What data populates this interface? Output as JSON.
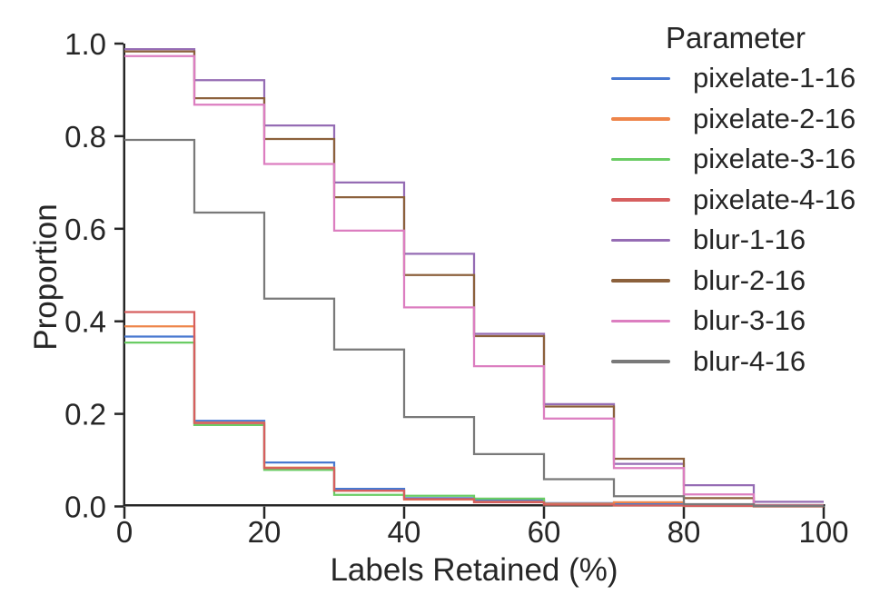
{
  "chart_data": {
    "type": "step-histogram",
    "stat": "proportion",
    "title": "",
    "xlabel": "Labels Retained (%)",
    "ylabel": "Proportion",
    "legend_title": "Parameter",
    "legend_position": "upper right",
    "grid": false,
    "xlim": [
      0,
      100
    ],
    "ylim": [
      0.0,
      1.0
    ],
    "x_tick_values": [
      0,
      20,
      40,
      60,
      80,
      100
    ],
    "x_tick_labels": [
      "0",
      "20",
      "40",
      "60",
      "80",
      "100"
    ],
    "y_tick_values": [
      0.0,
      0.2,
      0.4,
      0.6,
      0.8,
      1.0
    ],
    "y_tick_labels": [
      "0.0",
      "0.2",
      "0.4",
      "0.6",
      "0.8",
      "1.0"
    ],
    "bin_edges": [
      0,
      10,
      20,
      30,
      40,
      50,
      60,
      70,
      80,
      90,
      100
    ],
    "series": [
      {
        "name": "pixelate-1-16",
        "color": "#4878D0",
        "values": [
          0.367,
          0.185,
          0.095,
          0.038,
          0.018,
          0.014,
          0.007,
          0.005,
          0.002,
          0.001
        ]
      },
      {
        "name": "pixelate-2-16",
        "color": "#EE854A",
        "values": [
          0.389,
          0.181,
          0.084,
          0.034,
          0.015,
          0.01,
          0.006,
          0.009,
          0.002,
          0.001
        ]
      },
      {
        "name": "pixelate-3-16",
        "color": "#6ACC64",
        "values": [
          0.354,
          0.176,
          0.079,
          0.025,
          0.023,
          0.017,
          0.004,
          0.002,
          0.001,
          0.0
        ]
      },
      {
        "name": "pixelate-4-16",
        "color": "#D65F5F",
        "values": [
          0.42,
          0.18,
          0.083,
          0.034,
          0.016,
          0.009,
          0.004,
          0.002,
          0.001,
          0.0
        ]
      },
      {
        "name": "blur-1-16",
        "color": "#956CB4",
        "values": [
          0.988,
          0.921,
          0.823,
          0.7,
          0.546,
          0.373,
          0.221,
          0.092,
          0.046,
          0.01
        ]
      },
      {
        "name": "blur-2-16",
        "color": "#8C613C",
        "values": [
          0.983,
          0.882,
          0.794,
          0.668,
          0.5,
          0.368,
          0.216,
          0.103,
          0.018,
          0.003
        ]
      },
      {
        "name": "blur-3-16",
        "color": "#DC7EC0",
        "values": [
          0.973,
          0.868,
          0.74,
          0.596,
          0.43,
          0.303,
          0.19,
          0.083,
          0.026,
          0.002
        ]
      },
      {
        "name": "blur-4-16",
        "color": "#797979",
        "values": [
          0.792,
          0.635,
          0.449,
          0.339,
          0.193,
          0.113,
          0.059,
          0.022,
          0.005,
          0.001
        ]
      }
    ]
  },
  "style_colors": {
    "axis": "#262626",
    "text": "#262626",
    "background": "#ffffff"
  }
}
